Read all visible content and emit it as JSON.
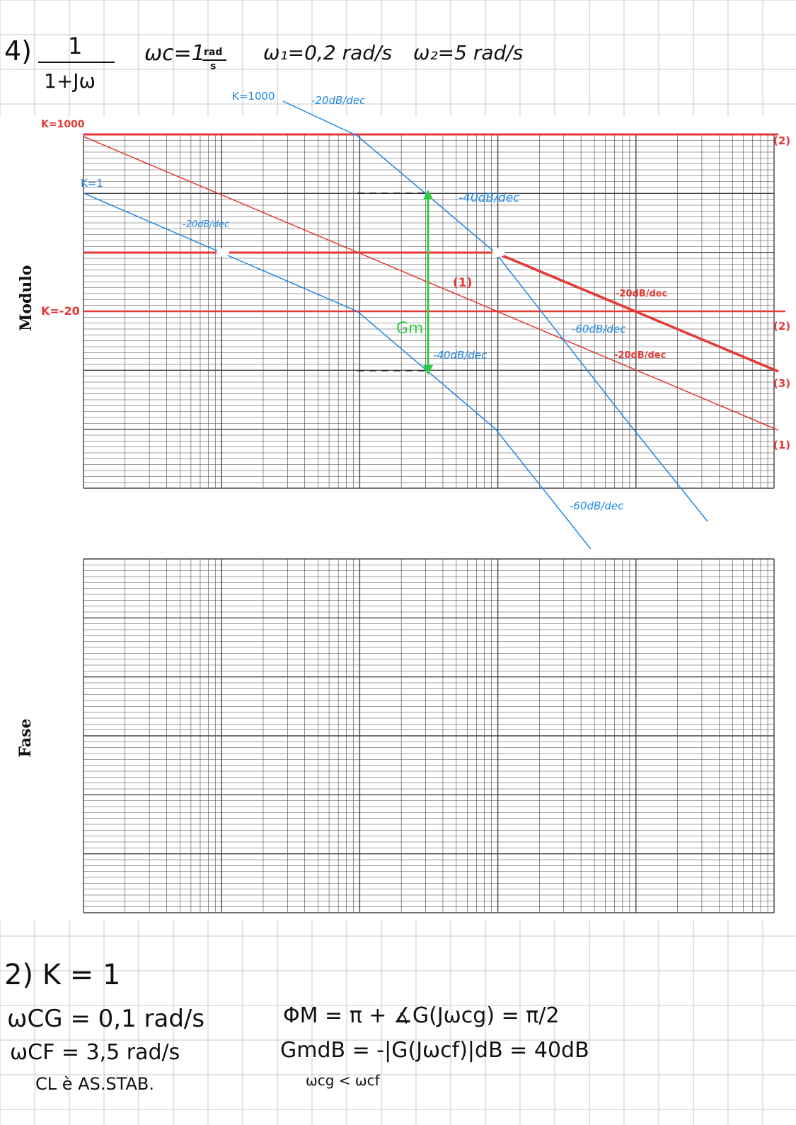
{
  "header": {
    "problem_number": "4)",
    "tf_numerator": "1",
    "tf_denominator": "1+Jω",
    "wc_label": "ωc=1",
    "wc_unit_top": "rad",
    "wc_unit_bottom": "s",
    "w1": "ω₁=0,2 rad/s",
    "w2": "ω₂=5 rad/s"
  },
  "module_plot": {
    "axis_label": "Modulo",
    "annotations": {
      "k1000_top": "K=1000",
      "slope_top": "-20dB/dec",
      "k1000_red": "K=1000",
      "k1_blue": "K=1",
      "slope_k1": "-20dB/dec",
      "slope_40_upper": "-40dB/dec",
      "slope_40_lower": "-40dB/dec",
      "gm_label": "Gm",
      "k_minus20": "K=-20",
      "label_1_mid": "(1)",
      "slope_60_mid": "-60dB/dec",
      "slope_20_right1": "-20dB/dec",
      "slope_20_right2": "-20dB/dec",
      "slope_60_bottom": "-60dB/dec",
      "label_2_top": "(2)",
      "label_2_mid": "(2)",
      "label_3": "(3)",
      "label_1_right": "(1)"
    }
  },
  "phase_plot": {
    "axis_label": "Fase"
  },
  "notes": {
    "k_line": "2) K = 1",
    "wcg": "ωCG = 0,1 rad/s",
    "wcf": "ωCF = 3,5 rad/s",
    "stability": "CL è AS.STAB.",
    "phase_margin": "ΦM = π + ∡G(Jωcg) = π/2",
    "gain_margin": "GmdB = -|G(Jωcf)|dB = 40dB",
    "comparison": "ωcg < ωcf"
  },
  "colors": {
    "red": "#e53935",
    "blue": "#1e88e5",
    "green": "#2ecc40",
    "paper_grid": "#c8c8c8",
    "plot_grid": "#444444"
  }
}
